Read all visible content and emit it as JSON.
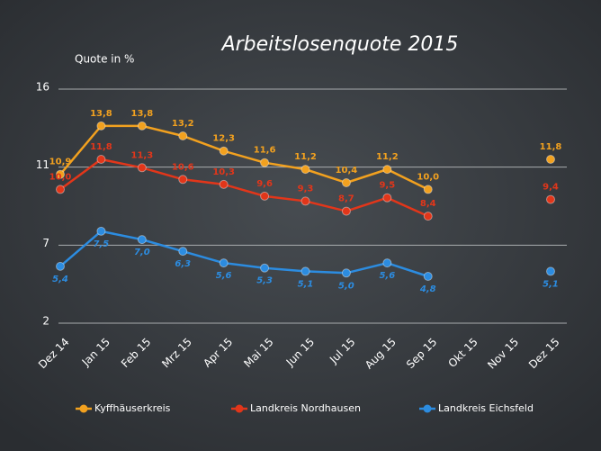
{
  "chart_data": {
    "type": "line",
    "title": "Arbeitslosenquote 2015",
    "y_label": "Quote in %",
    "categories": [
      "Dez 14",
      "Jan 15",
      "Feb 15",
      "Mrz 15",
      "Apr 15",
      "Mai 15",
      "Jun 15",
      "Jul 15",
      "Aug 15",
      "Sep 15",
      "Okt 15",
      "Nov 15",
      "Dez 15"
    ],
    "series": [
      {
        "name": "Kyffhäuserkreis",
        "color": "#f2a11f",
        "values": [
          10.9,
          13.8,
          13.8,
          13.2,
          12.3,
          11.6,
          11.2,
          10.4,
          11.2,
          10.0,
          null,
          null,
          11.8
        ],
        "value_labels": [
          "10,9",
          "13,8",
          "13,8",
          "13,2",
          "12,3",
          "11,6",
          "11,2",
          "10,4",
          "11,2",
          "10,0",
          null,
          null,
          "11,8"
        ]
      },
      {
        "name": "Landkreis Nordhausen",
        "color": "#e2361a",
        "values": [
          10.0,
          11.8,
          11.3,
          10.6,
          10.3,
          9.6,
          9.3,
          8.7,
          9.5,
          8.4,
          null,
          null,
          9.4
        ],
        "value_labels": [
          "10,0",
          "11,8",
          "11,3",
          "10,6",
          "10,3",
          "9,6",
          "9,3",
          "8,7",
          "9,5",
          "8,4",
          null,
          null,
          "9,4"
        ]
      },
      {
        "name": "Landkreis Eichsfeld",
        "color": "#2c8ce0",
        "values": [
          5.4,
          7.5,
          7.0,
          6.3,
          5.6,
          5.3,
          5.1,
          5.0,
          5.6,
          4.8,
          null,
          null,
          5.1
        ],
        "value_labels": [
          "5,4",
          "7,5",
          "7,0",
          "6,3",
          "5,6",
          "5,3",
          "5,1",
          "5,0",
          "5,6",
          "4,8",
          null,
          null,
          "5,1"
        ]
      }
    ],
    "ylim": [
      2,
      16
    ],
    "yticks": [
      2,
      {
        "value": 6.667,
        "label": "7"
      },
      {
        "value": 11.333,
        "label": "11"
      },
      16
    ],
    "grid": true,
    "legend": "bottom"
  }
}
